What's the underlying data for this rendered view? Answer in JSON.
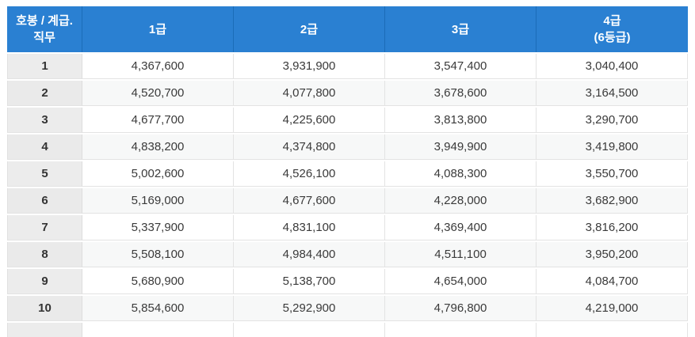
{
  "colors": {
    "header_bg": "#2a80d2",
    "header_divider": "#1b6cb8",
    "header_text": "#ffffff",
    "step_col_bg": "#ececec",
    "zebra_row_bg": "#f7f8f8",
    "cell_border": "#e3e3e3",
    "body_text": "#3a3a3a"
  },
  "table": {
    "header": {
      "columns": [
        {
          "label": "호봉 / 계급.",
          "sublabel": "직무"
        },
        {
          "label": "1급",
          "sublabel": ""
        },
        {
          "label": "2급",
          "sublabel": ""
        },
        {
          "label": "3급",
          "sublabel": ""
        },
        {
          "label": "4급",
          "sublabel": "(6등급)"
        }
      ]
    },
    "rows": [
      {
        "step": "1",
        "values": [
          "4,367,600",
          "3,931,900",
          "3,547,400",
          "3,040,400"
        ]
      },
      {
        "step": "2",
        "values": [
          "4,520,700",
          "4,077,800",
          "3,678,600",
          "3,164,500"
        ]
      },
      {
        "step": "3",
        "values": [
          "4,677,700",
          "4,225,600",
          "3,813,800",
          "3,290,700"
        ]
      },
      {
        "step": "4",
        "values": [
          "4,838,200",
          "4,374,800",
          "3,949,900",
          "3,419,800"
        ]
      },
      {
        "step": "5",
        "values": [
          "5,002,600",
          "4,526,100",
          "4,088,300",
          "3,550,700"
        ]
      },
      {
        "step": "6",
        "values": [
          "5,169,000",
          "4,677,600",
          "4,228,000",
          "3,682,900"
        ]
      },
      {
        "step": "7",
        "values": [
          "5,337,900",
          "4,831,100",
          "4,369,400",
          "3,816,200"
        ]
      },
      {
        "step": "8",
        "values": [
          "5,508,100",
          "4,984,400",
          "4,511,100",
          "3,950,200"
        ]
      },
      {
        "step": "9",
        "values": [
          "5,680,900",
          "5,138,700",
          "4,654,000",
          "4,084,700"
        ]
      },
      {
        "step": "10",
        "values": [
          "5,854,600",
          "5,292,900",
          "4,796,800",
          "4,219,000"
        ]
      }
    ]
  }
}
